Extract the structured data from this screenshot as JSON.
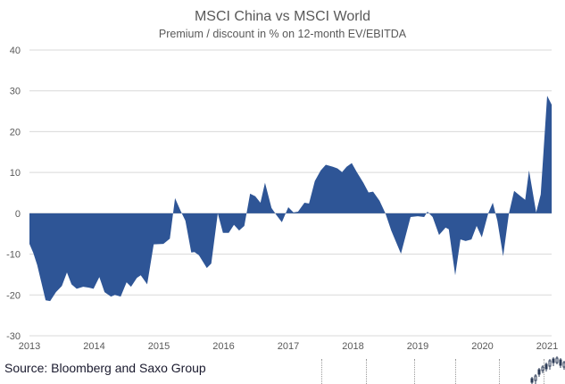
{
  "chart_data": {
    "type": "area",
    "title": "MSCI China vs MSCI World",
    "subtitle": "Premium / discount in % on 12-month EV/EBITDA",
    "xlabel": "",
    "ylabel": "",
    "xlim": [
      2013,
      2021.07
    ],
    "ylim": [
      -30,
      40
    ],
    "yticks": [
      40,
      30,
      20,
      10,
      0,
      -10,
      -20,
      -30
    ],
    "xticks": [
      "2013",
      "2014",
      "2015",
      "2016",
      "2017",
      "2018",
      "2019",
      "2020",
      "2021"
    ],
    "grid": true,
    "legend": "none",
    "fill_color": "#2E5596",
    "series": [
      {
        "name": "Premium / discount (%)",
        "x": [
          2013.0,
          2013.06,
          2013.12,
          2013.25,
          2013.32,
          2013.41,
          2013.5,
          2013.58,
          2013.65,
          2013.73,
          2013.83,
          2013.92,
          2013.99,
          2014.08,
          2014.16,
          2014.26,
          2014.32,
          2014.41,
          2014.5,
          2014.57,
          2014.66,
          2014.72,
          2014.82,
          2014.92,
          2015.07,
          2015.17,
          2015.25,
          2015.34,
          2015.41,
          2015.5,
          2015.55,
          2015.62,
          2015.74,
          2015.81,
          2015.91,
          2015.99,
          2016.08,
          2016.16,
          2016.24,
          2016.32,
          2016.41,
          2016.49,
          2016.57,
          2016.64,
          2016.74,
          2016.82,
          2016.9,
          2017.0,
          2017.08,
          2017.15,
          2017.25,
          2017.32,
          2017.41,
          2017.5,
          2017.58,
          2017.69,
          2017.76,
          2017.83,
          2017.9,
          2017.98,
          2018.06,
          2018.16,
          2018.24,
          2018.31,
          2018.41,
          2018.5,
          2018.59,
          2018.74,
          2018.89,
          2019.0,
          2019.1,
          2019.15,
          2019.23,
          2019.33,
          2019.43,
          2019.48,
          2019.58,
          2019.66,
          2019.74,
          2019.83,
          2019.91,
          2019.99,
          2020.09,
          2020.16,
          2020.23,
          2020.32,
          2020.41,
          2020.49,
          2020.59,
          2020.66,
          2020.72,
          2020.83,
          2020.9,
          2021.0,
          2021.07
        ],
        "values": [
          -7.5,
          -9.7,
          -12.7,
          -21.3,
          -21.5,
          -19.3,
          -17.8,
          -14.5,
          -17.4,
          -18.5,
          -18.0,
          -18.2,
          -18.5,
          -15.6,
          -19.3,
          -20.4,
          -20.0,
          -20.4,
          -16.9,
          -18.0,
          -15.8,
          -15.2,
          -17.4,
          -7.6,
          -7.5,
          -6.2,
          3.7,
          0.5,
          -1.8,
          -9.6,
          -9.5,
          -10.3,
          -13.4,
          -12.3,
          0.0,
          -4.8,
          -4.8,
          -2.8,
          -4.2,
          -3.1,
          4.8,
          4.2,
          2.6,
          7.5,
          1.3,
          -0.5,
          -2.2,
          1.5,
          0.2,
          0.4,
          2.6,
          2.4,
          7.9,
          10.5,
          11.9,
          11.4,
          11.0,
          10.1,
          11.4,
          12.3,
          10.1,
          7.5,
          5.1,
          5.3,
          3.1,
          0.0,
          -4.2,
          -9.9,
          -0.9,
          -0.7,
          -0.9,
          0.4,
          -0.9,
          -5.3,
          -3.5,
          -3.9,
          -15.2,
          -6.4,
          -6.8,
          -6.4,
          -3.1,
          -5.9,
          0.0,
          2.6,
          -1.8,
          -10.5,
          0.0,
          5.5,
          4.2,
          3.3,
          10.5,
          0.2,
          4.6,
          28.8,
          26.6
        ]
      }
    ]
  },
  "footer": {
    "source": "Source: Bloomberg and Saxo Group",
    "logo_icon": "candlestick-chart-icon"
  }
}
